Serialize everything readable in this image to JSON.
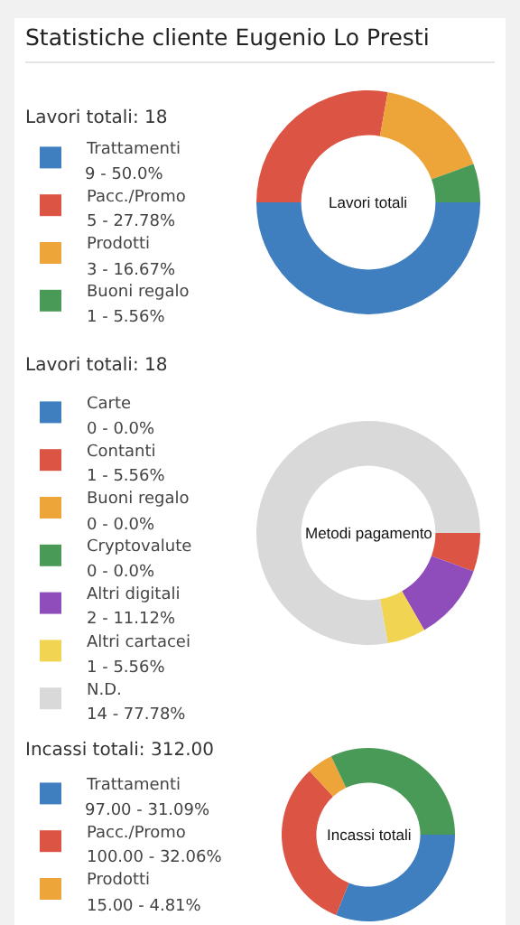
{
  "chart_data": [
    {
      "type": "donut",
      "title": "Statistiche cliente Eugenio Lo Presti",
      "subtitle": "Lavori totali: 18",
      "annotations": [
        "Lavori totali"
      ],
      "legend": "left",
      "categories": [
        "Trattamenti",
        "Pacc./Promo",
        "Prodotti",
        "Buoni regalo"
      ],
      "values": [
        9,
        5,
        3,
        1
      ],
      "value_labels": [
        "9 - 50.0%",
        "5 - 27.78%",
        "3 - 16.67%",
        "1 - 5.56%"
      ],
      "colors": [
        "#3f7fc0",
        "#dc5443",
        "#eda53a",
        "#4a9a57"
      ]
    },
    {
      "type": "donut",
      "subtitle": "Lavori totali: 18",
      "annotations": [
        "Metodi pagamento"
      ],
      "legend": "left",
      "categories": [
        "Carte",
        "Contanti",
        "Buoni regalo",
        "Cryptovalute",
        "Altri digitali",
        "Altri cartacei",
        "N.D."
      ],
      "values": [
        0,
        1,
        0,
        0,
        2,
        1,
        14
      ],
      "value_labels": [
        "0 - 0.0%",
        "1 - 5.56%",
        "0 - 0.0%",
        "0 - 0.0%",
        "2 - 11.12%",
        "1 - 5.56%",
        "14 - 77.78%"
      ],
      "colors": [
        "#3f7fc0",
        "#dc5443",
        "#eda53a",
        "#4a9a57",
        "#8e4dbb",
        "#f0d452",
        "#d9d9d9"
      ]
    },
    {
      "type": "donut",
      "subtitle": "Incassi totali: 312.00",
      "annotations": [
        "Incassi totali"
      ],
      "legend": "left",
      "categories": [
        "Trattamenti",
        "Pacc./Promo",
        "Prodotti",
        null
      ],
      "values": [
        97.0,
        100.0,
        15.0,
        100
      ],
      "value_labels": [
        "97.00 - 31.09%",
        "100.00 - 32.06%",
        "15.00 - 4.81%",
        null
      ],
      "colors": [
        "#3f7fc0",
        "#dc5443",
        "#eda53a",
        "#4a9a57"
      ]
    }
  ]
}
